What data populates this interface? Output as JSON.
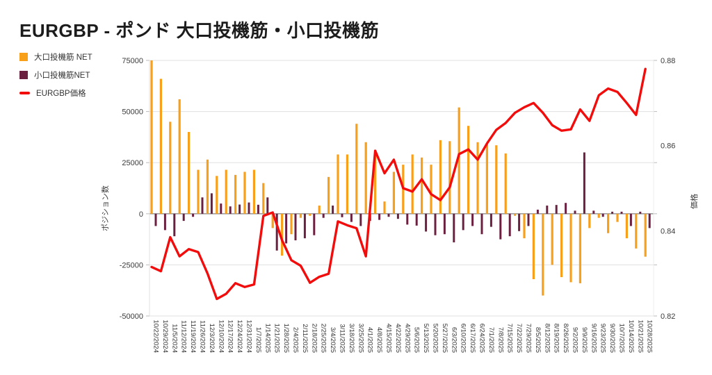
{
  "title": "EURGBP - ポンド 大口投機筋・小口投機筋",
  "legend": [
    {
      "label": "大口投機筋 NET",
      "color": "#F9A01B",
      "shape": "square"
    },
    {
      "label": "小口投機筋NET",
      "color": "#6B2040",
      "shape": "square"
    },
    {
      "label": "EURGBP価格",
      "color": "#F20C0C",
      "shape": "line"
    }
  ],
  "left_axis": {
    "title": "ポジション数",
    "tick_labels": [
      "75000",
      "50000",
      "25000",
      "0",
      "-25000",
      "-50000"
    ],
    "ticks": [
      75000,
      50000,
      25000,
      0,
      -25000,
      -50000
    ],
    "min": -50000,
    "max": 75000
  },
  "right_axis": {
    "title": "価格",
    "tick_labels": [
      "0.88",
      "0.86",
      "0.84",
      "0.82"
    ],
    "ticks": [
      0.88,
      0.86,
      0.84,
      0.82
    ],
    "min": 0.82,
    "max": 0.88
  },
  "colors": {
    "grid": "#e0e0e0",
    "zero_line": "#8c8c8c",
    "axis_text": "#3a3a3a",
    "tick": "#bbbbbb"
  },
  "chart_data": {
    "type": "bar",
    "subtype": "grouped-bars-with-line-overlay",
    "title": "EURGBP - ポンド 大口投機筋・小口投機筋",
    "grid": true,
    "legend_position": "top-left",
    "left_ylim": [
      -50000,
      75000
    ],
    "right_ylim": [
      0.82,
      0.88
    ],
    "categories": [
      "10/22/2024",
      "10/29/2024",
      "11/5/2024",
      "11/12/2024",
      "11/19/2024",
      "11/26/2024",
      "12/3/2024",
      "12/10/2024",
      "12/17/2024",
      "12/24/2024",
      "12/31/2024",
      "1/7/2025",
      "1/14/2025",
      "1/21/2025",
      "1/28/2025",
      "2/4/2025",
      "2/11/2025",
      "2/18/2025",
      "2/25/2025",
      "3/4/2025",
      "3/11/2025",
      "3/18/2025",
      "3/25/2025",
      "4/1/2025",
      "4/8/2025",
      "4/15/2025",
      "4/22/2025",
      "4/29/2025",
      "5/6/2025",
      "5/13/2025",
      "5/20/2025",
      "5/27/2025",
      "6/3/2025",
      "6/10/2025",
      "6/17/2025",
      "6/24/2025",
      "7/1/2025",
      "7/8/2025",
      "7/15/2025",
      "7/22/2025",
      "7/29/2025",
      "8/5/2025",
      "8/12/2025",
      "8/19/2025",
      "8/26/2025",
      "9/2/2025",
      "9/9/2025",
      "9/16/2025",
      "9/23/2025",
      "9/30/2025",
      "10/7/2025",
      "10/14/2025",
      "10/21/2025",
      "10/28/2025"
    ],
    "series": [
      {
        "name": "大口投機筋 NET",
        "type": "bar",
        "axis": "left",
        "color": "#F9A01B",
        "values": [
          75000,
          66000,
          45000,
          56000,
          40000,
          21500,
          26500,
          18500,
          21500,
          19000,
          20500,
          21500,
          15000,
          -7000,
          -20500,
          -10000,
          -2000,
          -1000,
          4000,
          18000,
          29000,
          29000,
          44000,
          35000,
          31000,
          6000,
          20500,
          24000,
          29000,
          27500,
          24000,
          36000,
          35500,
          52000,
          43000,
          35000,
          34000,
          33500,
          29500,
          -1000,
          -12000,
          -32000,
          -40000,
          -25000,
          -31000,
          -33500,
          -34000,
          -7000,
          -2000,
          -9500,
          -4000,
          -12000,
          -17000,
          -21000
        ]
      },
      {
        "name": "小口投機筋NET",
        "type": "bar",
        "axis": "left",
        "color": "#6B2040",
        "values": [
          -6000,
          -8000,
          -11000,
          -3500,
          -1500,
          8000,
          10000,
          5000,
          3600,
          4500,
          5500,
          4400,
          8000,
          -18000,
          -14500,
          -13000,
          -12000,
          -10500,
          -2000,
          4000,
          -1700,
          -4000,
          -6000,
          -3500,
          -3000,
          -1500,
          -2500,
          -5300,
          -5800,
          -8700,
          -10500,
          -10000,
          -14000,
          -8000,
          -6000,
          -10000,
          -6400,
          -12500,
          -11000,
          -8500,
          -6000,
          2000,
          4000,
          4300,
          5300,
          1500,
          30000,
          1500,
          -1500,
          1000,
          1000,
          -6000,
          1000,
          -7000
        ]
      },
      {
        "name": "EURGBP価格",
        "type": "line",
        "axis": "right",
        "color": "#F20C0C",
        "values": [
          0.8315,
          0.8305,
          0.8385,
          0.834,
          0.8357,
          0.835,
          0.83,
          0.824,
          0.8252,
          0.8277,
          0.8268,
          0.8274,
          0.8435,
          0.8443,
          0.8378,
          0.8331,
          0.8318,
          0.8278,
          0.8292,
          0.8299,
          0.8422,
          0.8413,
          0.8406,
          0.834,
          0.8588,
          0.8535,
          0.8567,
          0.85,
          0.8492,
          0.8521,
          0.8486,
          0.8472,
          0.8502,
          0.858,
          0.8591,
          0.8567,
          0.8605,
          0.8637,
          0.8653,
          0.8677,
          0.869,
          0.87,
          0.8677,
          0.8648,
          0.8635,
          0.8638,
          0.8685,
          0.8658,
          0.8718,
          0.8734,
          0.8726,
          0.87,
          0.8672,
          0.878
        ]
      }
    ]
  }
}
